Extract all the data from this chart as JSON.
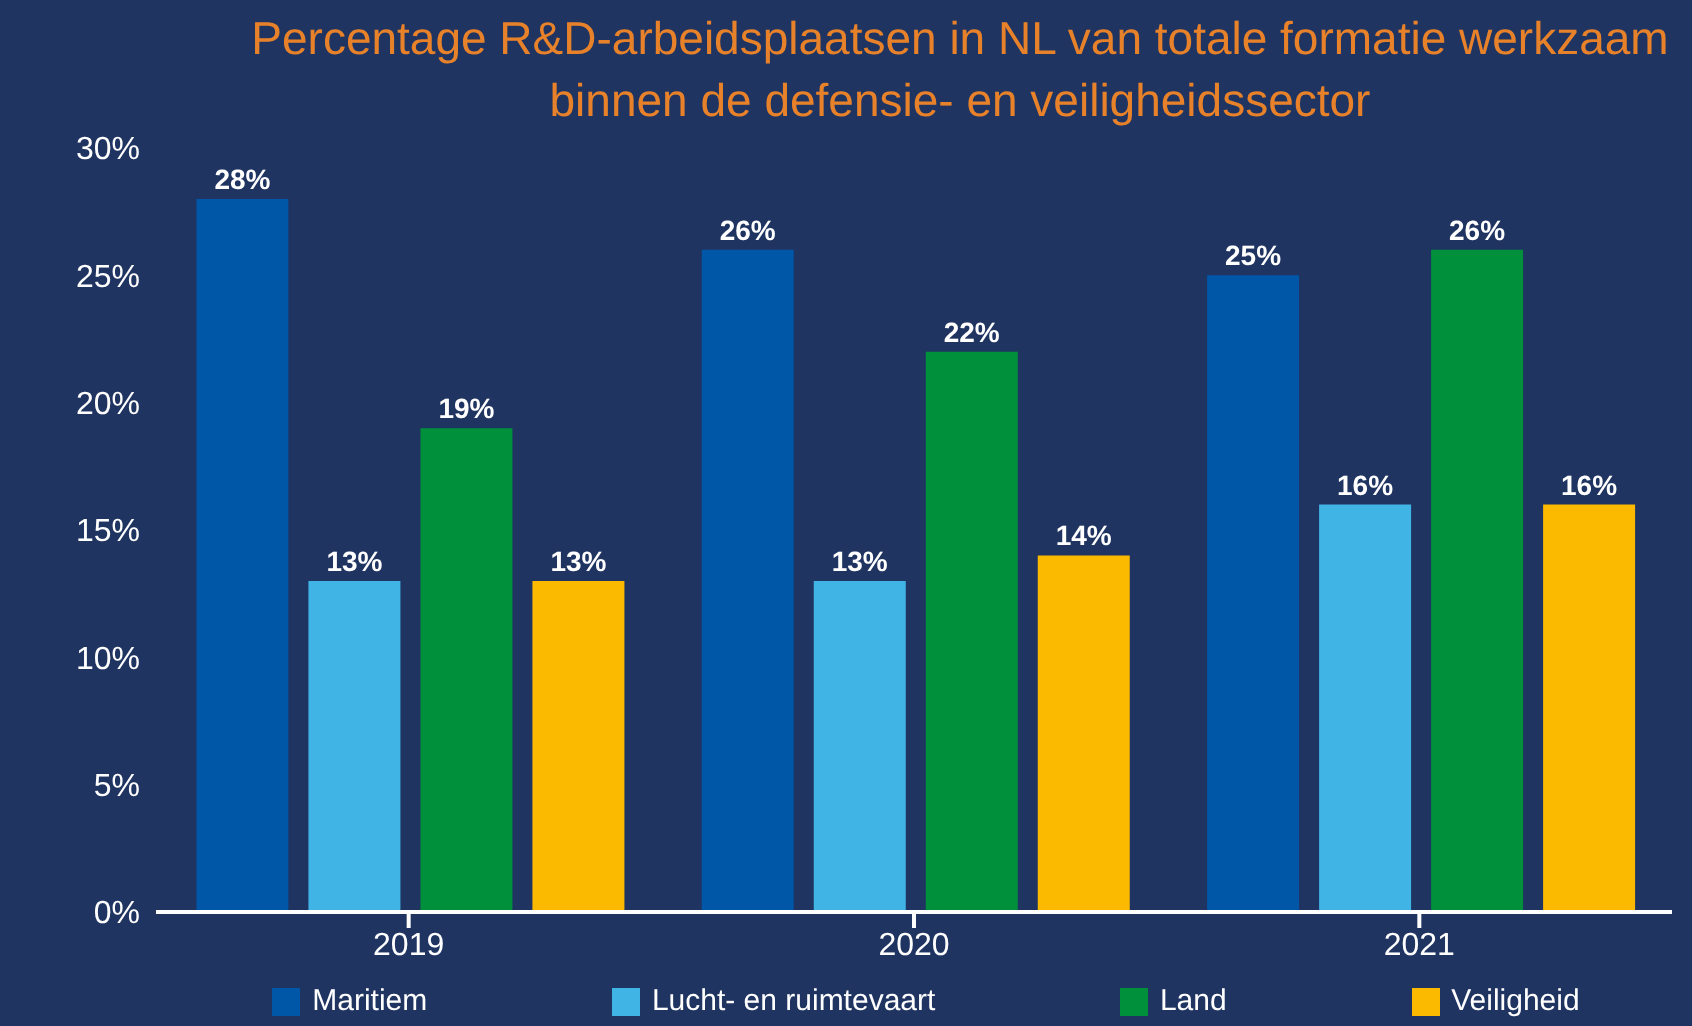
{
  "chart_data": {
    "type": "bar",
    "title": "Percentage R&D-arbeidsplaatsen in NL van totale formatie werkzaam binnen de defensie- en veiligheidssector",
    "categories": [
      "2019",
      "2020",
      "2021"
    ],
    "series": [
      {
        "name": "Maritiem",
        "color": "#0057a8",
        "values": [
          28,
          26,
          25
        ],
        "value_labels": [
          "28%",
          "26%",
          "25%"
        ]
      },
      {
        "name": "Lucht- en ruimtevaart",
        "color": "#41b4e6",
        "values": [
          13,
          13,
          16
        ],
        "value_labels": [
          "13%",
          "13%",
          "16%"
        ]
      },
      {
        "name": "Land",
        "color": "#00903c",
        "values": [
          19,
          22,
          26
        ],
        "value_labels": [
          "19%",
          "22%",
          "26%"
        ]
      },
      {
        "name": "Veiligheid",
        "color": "#fbb900",
        "values": [
          13,
          14,
          16
        ],
        "value_labels": [
          "13%",
          "14%",
          "16%"
        ]
      }
    ],
    "ylim": [
      0,
      30
    ],
    "yticks": [
      {
        "value": 0,
        "label": "0%"
      },
      {
        "value": 5,
        "label": "5%"
      },
      {
        "value": 10,
        "label": "10%"
      },
      {
        "value": 15,
        "label": "15%"
      },
      {
        "value": 20,
        "label": "20%"
      },
      {
        "value": 25,
        "label": "25%"
      },
      {
        "value": 30,
        "label": "30%"
      }
    ],
    "grid": false,
    "legend": "bottom"
  }
}
